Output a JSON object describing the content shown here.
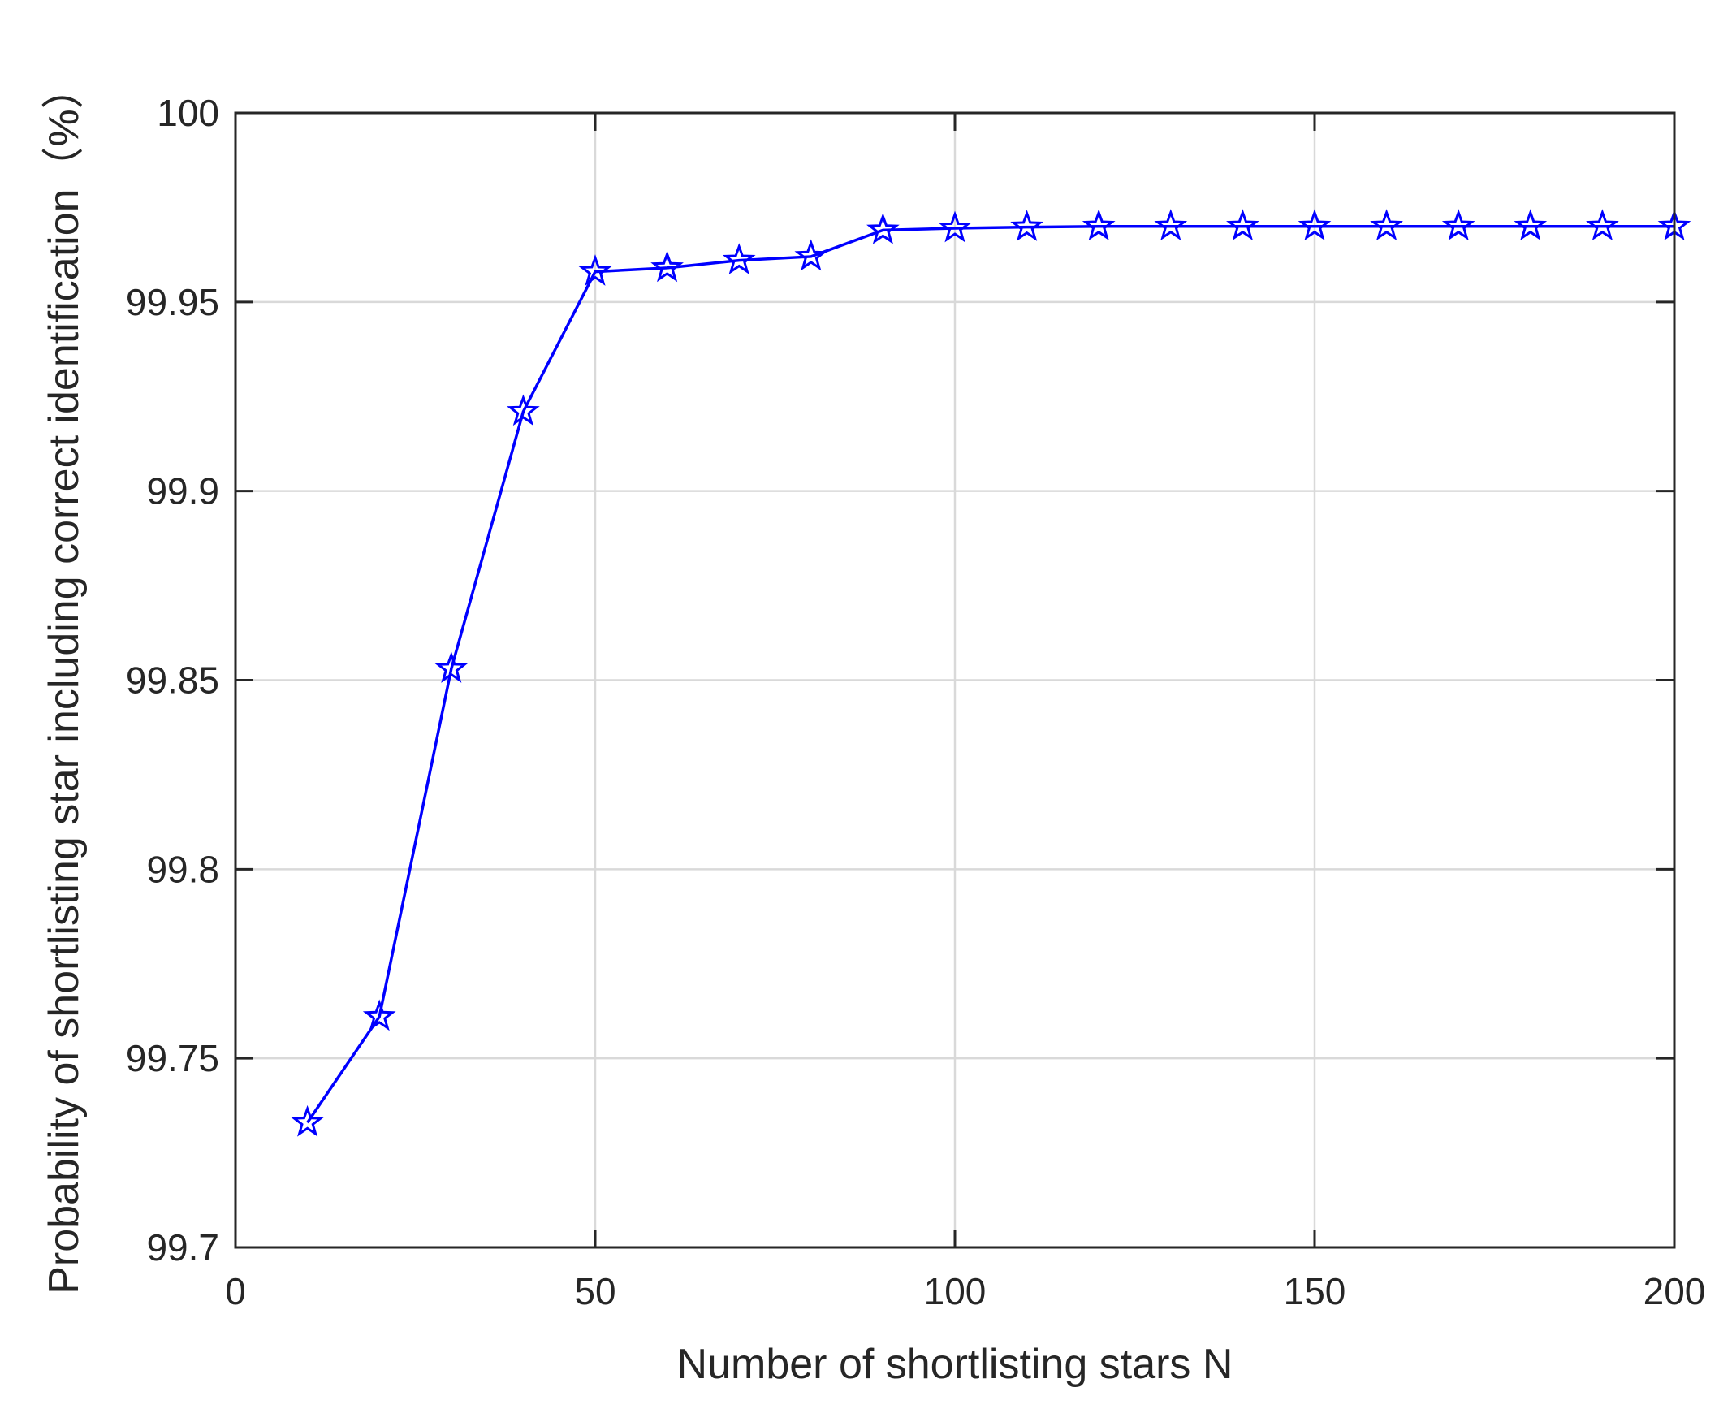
{
  "chart_data": {
    "type": "line",
    "xlabel": "Number of shortlisting stars N",
    "ylabel": "Probability of shortlisting star including correct identification（%）",
    "xlim": [
      0,
      200
    ],
    "ylim": [
      99.7,
      100
    ],
    "xticks": [
      0,
      50,
      100,
      150,
      200
    ],
    "yticks": [
      99.7,
      99.75,
      99.8,
      99.85,
      99.9,
      99.95,
      100
    ],
    "xtick_labels": [
      "0",
      "50",
      "100",
      "150",
      "200"
    ],
    "ytick_labels": [
      "99.7",
      "99.75",
      "99.8",
      "99.85",
      "99.9",
      "99.95",
      "100"
    ],
    "grid": true,
    "series": [
      {
        "color": "#0000ff",
        "marker": "pentagram",
        "x": [
          10,
          20,
          30,
          40,
          50,
          60,
          70,
          80,
          90,
          100,
          110,
          120,
          130,
          140,
          150,
          160,
          170,
          180,
          190,
          200
        ],
        "y": [
          99.733,
          99.761,
          99.853,
          99.921,
          99.958,
          99.959,
          99.961,
          99.962,
          99.969,
          99.9695,
          99.9698,
          99.97,
          99.97,
          99.97,
          99.97,
          99.97,
          99.97,
          99.97,
          99.97,
          99.97
        ]
      }
    ]
  }
}
